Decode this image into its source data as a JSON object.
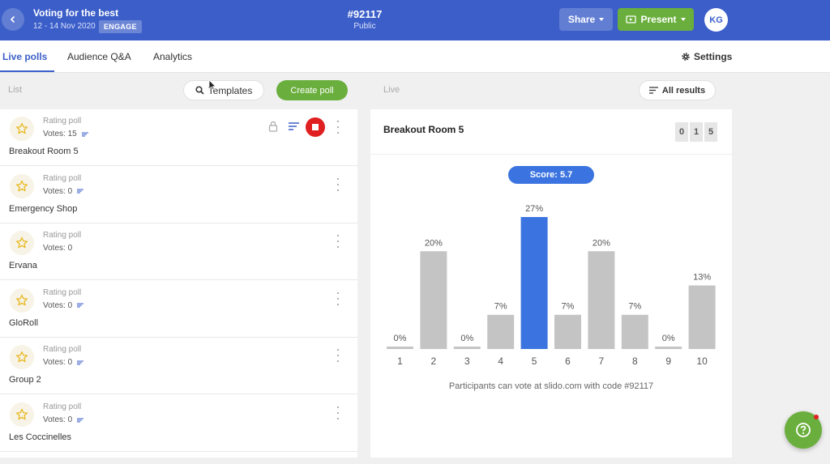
{
  "header": {
    "event_title": "Voting for the best",
    "event_dates": "12 - 14 Nov 2020",
    "badge": "ENGAGE",
    "event_code": "#92117",
    "access": "Public",
    "share_label": "Share",
    "present_label": "Present",
    "avatar_initials": "KG"
  },
  "tabs": [
    {
      "label": "Live polls",
      "active": true
    },
    {
      "label": "Audience Q&A",
      "active": false
    },
    {
      "label": "Analytics",
      "active": false
    }
  ],
  "settings_label": "Settings",
  "list_header": {
    "list_label": "List",
    "templates_label": "Templates",
    "create_label": "Create poll",
    "live_label": "Live",
    "all_results_label": "All results"
  },
  "polls": [
    {
      "type": "Rating poll",
      "votes": "Votes: 15",
      "name": "Breakout Room 5",
      "active": true
    },
    {
      "type": "Rating poll",
      "votes": "Votes: 0",
      "name": "Emergency Shop",
      "active": false
    },
    {
      "type": "Rating poll",
      "votes": "Votes: 0",
      "name": "Ervana",
      "active": false
    },
    {
      "type": "Rating poll",
      "votes": "Votes: 0",
      "name": "GloRoll",
      "active": false
    },
    {
      "type": "Rating poll",
      "votes": "Votes: 0",
      "name": "Group 2",
      "active": false
    },
    {
      "type": "Rating poll",
      "votes": "Votes: 0",
      "name": "Les Coccinelles",
      "active": false
    }
  ],
  "results": {
    "title": "Breakout Room 5",
    "counter_digits": [
      "0",
      "1",
      "5"
    ],
    "score": "Score: 5.7",
    "footer": "Participants can vote at slido.com with code #92117"
  },
  "colors": {
    "brand": "#3b5ec9",
    "green": "#6aaf3d",
    "bar_default": "#c4c4c4",
    "bar_highlight": "#3b74e0",
    "stop_red": "#e02020"
  },
  "chart_data": {
    "type": "bar",
    "categories": [
      "1",
      "2",
      "3",
      "4",
      "5",
      "6",
      "7",
      "8",
      "9",
      "10"
    ],
    "values": [
      0,
      20,
      0,
      7,
      27,
      7,
      20,
      7,
      0,
      13
    ],
    "data_labels": [
      "0%",
      "20%",
      "0%",
      "7%",
      "27%",
      "7%",
      "20%",
      "7%",
      "0%",
      "13%"
    ],
    "highlight_index": 4,
    "title": "",
    "xlabel": "",
    "ylabel": "",
    "ylim": [
      0,
      27
    ],
    "grid": false
  }
}
